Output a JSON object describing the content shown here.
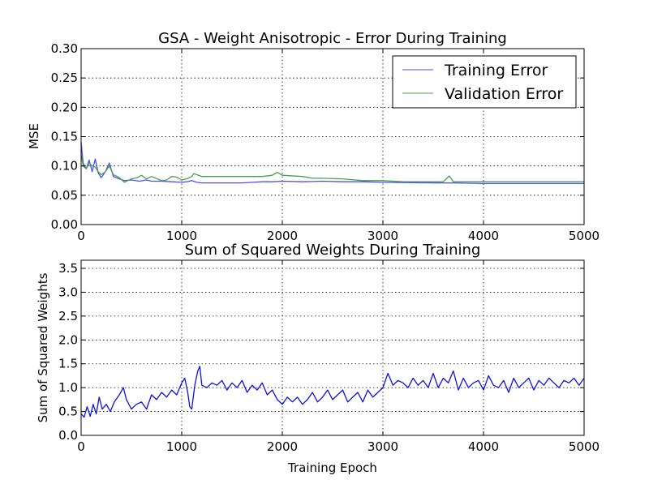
{
  "chart_data": [
    {
      "type": "line",
      "title": "GSA - Weight Anisotropic - Error During Training",
      "xlabel": "",
      "ylabel": "MSE",
      "xlim": [
        0,
        5000
      ],
      "ylim": [
        0,
        0.3
      ],
      "xticks": [
        "0",
        "1000",
        "2000",
        "3000",
        "4000",
        "5000"
      ],
      "yticks": [
        "0.00",
        "0.05",
        "0.10",
        "0.15",
        "0.20",
        "0.25",
        "0.30"
      ],
      "grid": true,
      "legend_position": "top-right",
      "series": [
        {
          "name": "Training Error",
          "color": "#4e4ef0",
          "x": [
            0,
            20,
            50,
            80,
            110,
            140,
            170,
            200,
            240,
            280,
            320,
            380,
            430,
            500,
            580,
            650,
            700,
            800,
            900,
            1000,
            1050,
            1100,
            1150,
            1200,
            1400,
            1600,
            1700,
            1800,
            1900,
            2000,
            2200,
            2400,
            2600,
            2800,
            3000,
            3500,
            3700,
            4000,
            4500,
            5000
          ],
          "y": [
            0.14,
            0.105,
            0.095,
            0.11,
            0.09,
            0.112,
            0.088,
            0.08,
            0.09,
            0.105,
            0.082,
            0.078,
            0.075,
            0.076,
            0.074,
            0.076,
            0.074,
            0.074,
            0.073,
            0.072,
            0.073,
            0.075,
            0.072,
            0.071,
            0.071,
            0.071,
            0.072,
            0.073,
            0.073,
            0.074,
            0.073,
            0.074,
            0.073,
            0.073,
            0.072,
            0.071,
            0.071,
            0.07,
            0.07,
            0.07
          ]
        },
        {
          "name": "Validation Error",
          "color": "#4aa04a",
          "x": [
            0,
            20,
            50,
            80,
            110,
            140,
            170,
            200,
            240,
            280,
            320,
            380,
            430,
            500,
            560,
            600,
            650,
            700,
            800,
            850,
            900,
            950,
            1000,
            1050,
            1100,
            1120,
            1150,
            1200,
            1400,
            1600,
            1700,
            1800,
            1900,
            1950,
            2000,
            2200,
            2300,
            2400,
            2600,
            2800,
            3000,
            3200,
            3600,
            3660,
            3700,
            4000,
            4500,
            5000
          ],
          "y": [
            0.12,
            0.1,
            0.095,
            0.105,
            0.1,
            0.098,
            0.09,
            0.085,
            0.09,
            0.1,
            0.085,
            0.08,
            0.072,
            0.078,
            0.08,
            0.084,
            0.078,
            0.082,
            0.075,
            0.076,
            0.082,
            0.081,
            0.076,
            0.078,
            0.082,
            0.087,
            0.085,
            0.082,
            0.082,
            0.082,
            0.082,
            0.082,
            0.084,
            0.089,
            0.084,
            0.082,
            0.079,
            0.079,
            0.078,
            0.075,
            0.075,
            0.073,
            0.073,
            0.083,
            0.073,
            0.073,
            0.073,
            0.073
          ]
        }
      ]
    },
    {
      "type": "line",
      "title": "Sum of Squared Weights During Training",
      "xlabel": "Training Epoch",
      "ylabel": "Sum of Squared Weights",
      "xlim": [
        0,
        5000
      ],
      "ylim": [
        0,
        3.67
      ],
      "xticks": [
        "0",
        "1000",
        "2000",
        "3000",
        "4000",
        "5000"
      ],
      "yticks": [
        "0.0",
        "0.5",
        "1.0",
        "1.5",
        "2.0",
        "2.5",
        "3.0",
        "3.5"
      ],
      "grid": true,
      "series": [
        {
          "color": "#1010e0",
          "x": [
            0,
            30,
            60,
            90,
            120,
            150,
            180,
            210,
            250,
            290,
            330,
            380,
            420,
            450,
            500,
            550,
            600,
            650,
            700,
            750,
            800,
            850,
            900,
            950,
            1000,
            1030,
            1060,
            1080,
            1100,
            1130,
            1160,
            1180,
            1200,
            1250,
            1300,
            1350,
            1400,
            1450,
            1500,
            1550,
            1600,
            1650,
            1700,
            1750,
            1800,
            1850,
            1900,
            1950,
            2000,
            2050,
            2100,
            2150,
            2200,
            2250,
            2300,
            2350,
            2400,
            2450,
            2500,
            2550,
            2600,
            2650,
            2700,
            2750,
            2800,
            2850,
            2900,
            2950,
            3000,
            3050,
            3100,
            3150,
            3200,
            3250,
            3300,
            3350,
            3400,
            3450,
            3500,
            3550,
            3600,
            3650,
            3700,
            3750,
            3800,
            3850,
            3900,
            3950,
            4000,
            4050,
            4100,
            4150,
            4200,
            4250,
            4300,
            4350,
            4400,
            4450,
            4500,
            4550,
            4600,
            4650,
            4700,
            4750,
            4800,
            4850,
            4900,
            4950,
            5000
          ],
          "y": [
            0.45,
            0.38,
            0.6,
            0.4,
            0.65,
            0.45,
            0.8,
            0.55,
            0.65,
            0.5,
            0.7,
            0.85,
            1.0,
            0.75,
            0.55,
            0.65,
            0.7,
            0.55,
            0.85,
            0.75,
            0.9,
            0.8,
            0.95,
            0.85,
            1.1,
            1.2,
            0.9,
            0.6,
            0.55,
            1.05,
            1.35,
            1.45,
            1.05,
            1.0,
            1.1,
            1.05,
            1.15,
            0.95,
            1.1,
            1.0,
            1.15,
            0.9,
            1.05,
            0.95,
            1.1,
            0.85,
            0.95,
            0.75,
            0.65,
            0.8,
            0.7,
            0.8,
            0.65,
            0.75,
            0.9,
            0.7,
            0.8,
            0.95,
            0.75,
            0.85,
            0.95,
            0.7,
            0.8,
            0.9,
            0.7,
            0.95,
            0.8,
            0.9,
            1.0,
            1.3,
            1.05,
            1.15,
            1.1,
            1.0,
            1.2,
            1.05,
            1.15,
            1.0,
            1.3,
            1.0,
            1.2,
            1.1,
            1.35,
            0.95,
            1.2,
            1.0,
            1.1,
            1.15,
            0.95,
            1.25,
            1.05,
            1.0,
            1.15,
            0.9,
            1.2,
            1.0,
            1.1,
            1.2,
            0.95,
            1.15,
            1.05,
            1.2,
            1.1,
            1.0,
            1.15,
            1.1,
            1.2,
            1.05,
            1.2
          ]
        }
      ]
    }
  ]
}
